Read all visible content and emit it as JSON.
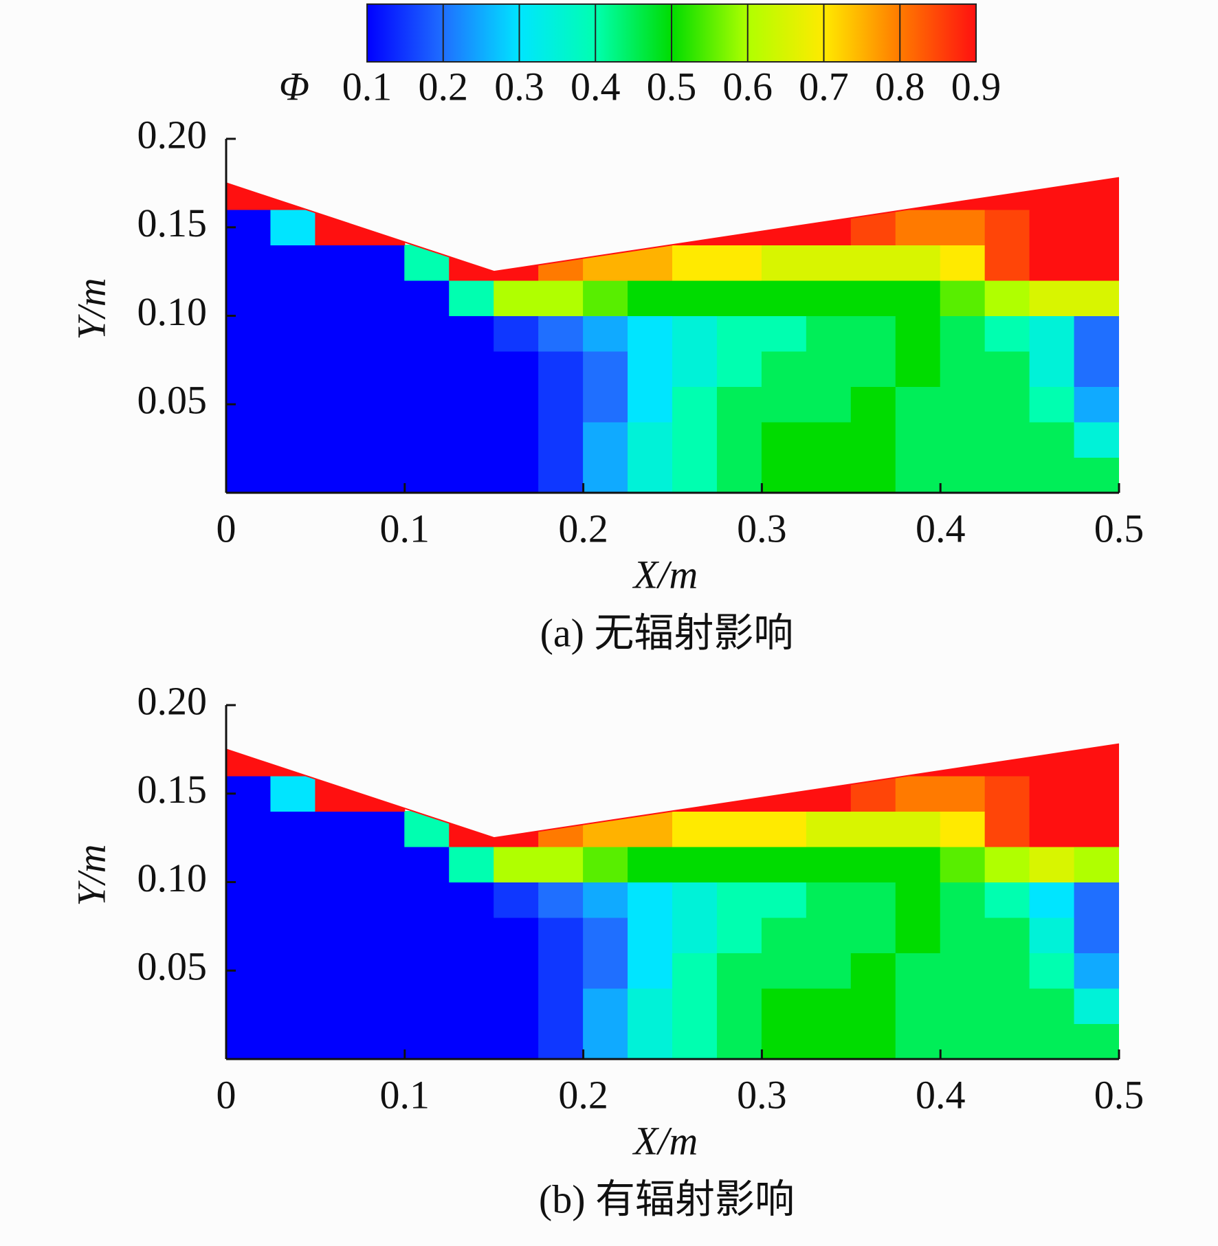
{
  "chart_data": [
    {
      "type": "contour",
      "caption": "(a) 无辐射影响",
      "xlabel": "X/m",
      "ylabel": "Y/m",
      "colorbar": {
        "label": "Φ",
        "ticks": [
          0.1,
          0.2,
          0.3,
          0.4,
          0.5,
          0.6,
          0.7,
          0.8,
          0.9
        ],
        "colors": [
          "#0000ff",
          "#1f6fff",
          "#00e5ff",
          "#00ffb0",
          "#00dc00",
          "#b0ff00",
          "#ffea00",
          "#ff7a00",
          "#ff1010"
        ]
      },
      "xlim": [
        0,
        0.5
      ],
      "ylim": [
        0,
        0.2
      ],
      "xticks": [
        0,
        0.1,
        0.2,
        0.3,
        0.4,
        0.5
      ],
      "yticks": [
        0.05,
        {
          "value": 0.1,
          "label": "0.10"
        },
        0.15,
        {
          "value": 0.2,
          "label": "0.20"
        }
      ],
      "boundary": {
        "x": [
          0,
          0.15,
          0.5
        ],
        "y": [
          0.175,
          0.125,
          0.178
        ]
      },
      "x": [
        0.0125,
        0.0375,
        0.0625,
        0.0875,
        0.1125,
        0.1375,
        0.1625,
        0.1875,
        0.2125,
        0.2375,
        0.2625,
        0.2875,
        0.3125,
        0.3375,
        0.3625,
        0.3875,
        0.4125,
        0.4375,
        0.4625,
        0.4875
      ],
      "y": [
        0.01,
        0.03,
        0.05,
        0.07,
        0.09,
        0.11,
        0.13,
        0.15,
        0.17
      ],
      "z": [
        [
          0.1,
          0.1,
          0.1,
          0.1,
          0.1,
          0.1,
          0.1,
          0.15,
          0.25,
          0.35,
          0.4,
          0.45,
          0.5,
          0.5,
          0.5,
          0.45,
          0.45,
          0.45,
          0.45,
          0.45
        ],
        [
          0.1,
          0.1,
          0.1,
          0.1,
          0.1,
          0.1,
          0.1,
          0.15,
          0.25,
          0.35,
          0.4,
          0.45,
          0.5,
          0.5,
          0.5,
          0.45,
          0.45,
          0.45,
          0.45,
          0.35
        ],
        [
          0.1,
          0.1,
          0.1,
          0.1,
          0.1,
          0.1,
          0.1,
          0.15,
          0.2,
          0.3,
          0.4,
          0.45,
          0.45,
          0.45,
          0.5,
          0.45,
          0.45,
          0.45,
          0.4,
          0.25
        ],
        [
          0.1,
          0.1,
          0.1,
          0.1,
          0.1,
          0.1,
          0.1,
          0.15,
          0.2,
          0.3,
          0.35,
          0.4,
          0.45,
          0.45,
          0.45,
          0.5,
          0.45,
          0.45,
          0.35,
          0.2
        ],
        [
          0.1,
          0.1,
          0.1,
          0.1,
          0.1,
          0.1,
          0.15,
          0.2,
          0.25,
          0.3,
          0.35,
          0.4,
          0.4,
          0.45,
          0.45,
          0.5,
          0.45,
          0.4,
          0.35,
          0.2
        ],
        [
          0.1,
          0.1,
          0.1,
          0.1,
          0.1,
          0.4,
          0.6,
          0.6,
          0.55,
          0.5,
          0.5,
          0.5,
          0.5,
          0.5,
          0.5,
          0.5,
          0.55,
          0.6,
          0.65,
          0.65
        ],
        [
          0.1,
          0.1,
          0.1,
          0.1,
          0.4,
          0.9,
          0.9,
          0.8,
          0.75,
          0.75,
          0.7,
          0.7,
          0.65,
          0.65,
          0.65,
          0.65,
          0.7,
          0.85,
          0.9,
          0.9
        ],
        [
          0.1,
          0.3,
          0.9,
          0.9,
          null,
          null,
          null,
          null,
          null,
          null,
          0.9,
          0.9,
          0.9,
          0.9,
          0.85,
          0.8,
          0.8,
          0.85,
          0.9,
          0.9
        ],
        [
          0.9,
          0.9,
          null,
          null,
          null,
          null,
          null,
          null,
          null,
          null,
          null,
          null,
          null,
          null,
          null,
          0.9,
          0.9,
          0.9,
          0.9,
          0.9
        ]
      ]
    },
    {
      "type": "contour",
      "caption": "(b) 有辐射影响",
      "xlabel": "X/m",
      "ylabel": "Y/m",
      "xlim": [
        0,
        0.5
      ],
      "ylim": [
        0,
        0.2
      ],
      "xticks": [
        0,
        0.1,
        0.2,
        0.3,
        0.4,
        0.5
      ],
      "yticks": [
        0.05,
        {
          "value": 0.1,
          "label": "0.10"
        },
        0.15,
        {
          "value": 0.2,
          "label": "0.20"
        }
      ],
      "boundary": {
        "x": [
          0,
          0.15,
          0.5
        ],
        "y": [
          0.175,
          0.125,
          0.178
        ]
      },
      "x": [
        0.0125,
        0.0375,
        0.0625,
        0.0875,
        0.1125,
        0.1375,
        0.1625,
        0.1875,
        0.2125,
        0.2375,
        0.2625,
        0.2875,
        0.3125,
        0.3375,
        0.3625,
        0.3875,
        0.4125,
        0.4375,
        0.4625,
        0.4875
      ],
      "y": [
        0.01,
        0.03,
        0.05,
        0.07,
        0.09,
        0.11,
        0.13,
        0.15,
        0.17
      ],
      "z": [
        [
          0.1,
          0.1,
          0.1,
          0.1,
          0.1,
          0.1,
          0.1,
          0.15,
          0.25,
          0.35,
          0.4,
          0.45,
          0.5,
          0.5,
          0.5,
          0.45,
          0.45,
          0.45,
          0.45,
          0.45
        ],
        [
          0.1,
          0.1,
          0.1,
          0.1,
          0.1,
          0.1,
          0.1,
          0.15,
          0.25,
          0.35,
          0.4,
          0.45,
          0.5,
          0.5,
          0.5,
          0.45,
          0.45,
          0.45,
          0.45,
          0.35
        ],
        [
          0.1,
          0.1,
          0.1,
          0.1,
          0.1,
          0.1,
          0.1,
          0.15,
          0.2,
          0.3,
          0.4,
          0.45,
          0.45,
          0.45,
          0.5,
          0.45,
          0.45,
          0.45,
          0.4,
          0.25
        ],
        [
          0.1,
          0.1,
          0.1,
          0.1,
          0.1,
          0.1,
          0.1,
          0.15,
          0.2,
          0.3,
          0.35,
          0.4,
          0.45,
          0.45,
          0.45,
          0.5,
          0.45,
          0.45,
          0.35,
          0.2
        ],
        [
          0.1,
          0.1,
          0.1,
          0.1,
          0.1,
          0.1,
          0.15,
          0.2,
          0.25,
          0.3,
          0.35,
          0.4,
          0.4,
          0.45,
          0.45,
          0.5,
          0.45,
          0.4,
          0.3,
          0.2
        ],
        [
          0.1,
          0.1,
          0.1,
          0.1,
          0.1,
          0.4,
          0.6,
          0.6,
          0.55,
          0.5,
          0.5,
          0.5,
          0.5,
          0.5,
          0.5,
          0.5,
          0.55,
          0.6,
          0.65,
          0.6
        ],
        [
          0.1,
          0.1,
          0.1,
          0.1,
          0.4,
          0.9,
          0.9,
          0.8,
          0.75,
          0.75,
          0.7,
          0.7,
          0.7,
          0.65,
          0.65,
          0.65,
          0.7,
          0.85,
          0.9,
          0.9
        ],
        [
          0.1,
          0.3,
          0.9,
          0.9,
          null,
          null,
          null,
          null,
          null,
          null,
          0.9,
          0.9,
          0.9,
          0.9,
          0.85,
          0.8,
          0.8,
          0.85,
          0.9,
          0.9
        ],
        [
          0.9,
          0.9,
          null,
          null,
          null,
          null,
          null,
          null,
          null,
          null,
          null,
          null,
          null,
          null,
          null,
          0.9,
          0.9,
          0.9,
          0.9,
          0.9
        ]
      ]
    }
  ]
}
